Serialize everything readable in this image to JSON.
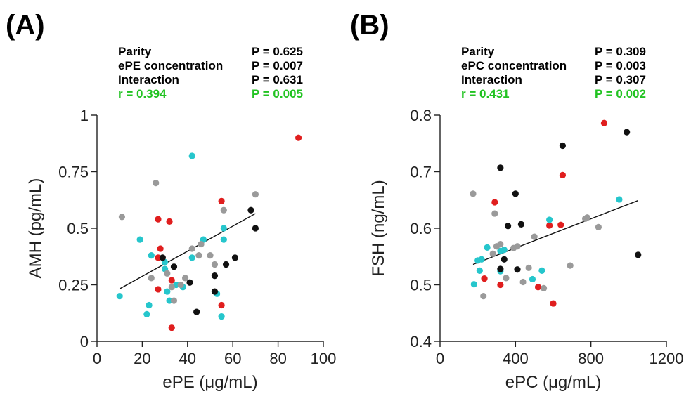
{
  "colors": {
    "red": "#e01e1e",
    "cyan": "#26c6cc",
    "gray": "#9a9a9a",
    "black": "#111111",
    "green": "#22c322"
  },
  "chart_data": [
    {
      "type": "scatter",
      "panel_label": "(A)",
      "xlabel": "ePE (μg/mL)",
      "ylabel": "AMH (pg/mL)",
      "xlim": [
        0,
        100
      ],
      "ylim": [
        0,
        1
      ],
      "xticks": [
        0,
        20,
        40,
        60,
        80,
        100
      ],
      "xtick_labels": [
        "0",
        "20",
        "40",
        "60",
        "80",
        "100"
      ],
      "yticks": [
        0,
        0.25,
        0.5,
        0.75,
        1
      ],
      "ytick_labels": [
        "0",
        "0.25",
        "0.5",
        "0.75",
        "1"
      ],
      "stats": [
        {
          "label": "Parity",
          "p": "P = 0.625",
          "color": "black"
        },
        {
          "label": "ePE concentration",
          "p": "P = 0.007",
          "color": "black"
        },
        {
          "label": "Interaction",
          "p": "P = 0.631",
          "color": "black"
        },
        {
          "label": "r = 0.394",
          "p": "P = 0.005",
          "color": "green"
        }
      ],
      "fit_line": {
        "x": [
          10,
          70
        ],
        "y": [
          0.232,
          0.565
        ]
      },
      "series": [
        {
          "color": "red",
          "points": [
            [
              89,
              0.9
            ],
            [
              55,
              0.62
            ],
            [
              27,
              0.54
            ],
            [
              32,
              0.53
            ],
            [
              28,
              0.41
            ],
            [
              27,
              0.37
            ],
            [
              33,
              0.27
            ],
            [
              27,
              0.23
            ],
            [
              55,
              0.16
            ],
            [
              33,
              0.06
            ]
          ]
        },
        {
          "color": "cyan",
          "points": [
            [
              42,
              0.82
            ],
            [
              19,
              0.45
            ],
            [
              47,
              0.45
            ],
            [
              56,
              0.5
            ],
            [
              56,
              0.45
            ],
            [
              24,
              0.38
            ],
            [
              30,
              0.35
            ],
            [
              30,
              0.32
            ],
            [
              35,
              0.25
            ],
            [
              31,
              0.22
            ],
            [
              32,
              0.18
            ],
            [
              23,
              0.16
            ],
            [
              22,
              0.12
            ],
            [
              10,
              0.2
            ],
            [
              38,
              0.24
            ],
            [
              53,
              0.21
            ],
            [
              55,
              0.11
            ],
            [
              42,
              0.37
            ]
          ]
        },
        {
          "color": "gray",
          "points": [
            [
              11,
              0.55
            ],
            [
              26,
              0.7
            ],
            [
              70,
              0.65
            ],
            [
              56,
              0.58
            ],
            [
              42,
              0.41
            ],
            [
              46,
              0.43
            ],
            [
              50,
              0.38
            ],
            [
              45,
              0.38
            ],
            [
              52,
              0.34
            ],
            [
              57,
              0.34
            ],
            [
              39,
              0.28
            ],
            [
              37,
              0.25
            ],
            [
              24,
              0.28
            ],
            [
              33,
              0.24
            ],
            [
              34,
              0.18
            ],
            [
              31,
              0.3
            ]
          ]
        },
        {
          "color": "black",
          "points": [
            [
              68,
              0.58
            ],
            [
              70,
              0.5
            ],
            [
              61,
              0.37
            ],
            [
              57,
              0.34
            ],
            [
              34,
              0.33
            ],
            [
              29,
              0.37
            ],
            [
              52,
              0.29
            ],
            [
              41,
              0.26
            ],
            [
              52,
              0.22
            ],
            [
              44,
              0.13
            ]
          ]
        }
      ]
    },
    {
      "type": "scatter",
      "panel_label": "(B)",
      "xlabel": "ePC (μg/mL)",
      "ylabel": "FSH (ng/mL)",
      "xlim": [
        0,
        1200
      ],
      "ylim": [
        0.4,
        0.8
      ],
      "xticks": [
        0,
        400,
        800,
        1200
      ],
      "xtick_labels": [
        "0",
        "400",
        "800",
        "1200"
      ],
      "yticks": [
        0.4,
        0.5,
        0.6,
        0.7,
        0.8
      ],
      "ytick_labels": [
        "0.4",
        "0.5",
        "0.6",
        "0.7",
        "0.8"
      ],
      "stats": [
        {
          "label": "Parity",
          "p": "P = 0.309",
          "color": "black"
        },
        {
          "label": "ePC concentration",
          "p": "P = 0.003",
          "color": "black"
        },
        {
          "label": "Interaction",
          "p": "P = 0.307",
          "color": "black"
        },
        {
          "label": "r = 0.431",
          "p": "P = 0.002",
          "color": "green"
        }
      ],
      "fit_line": {
        "x": [
          175,
          1050
        ],
        "y": [
          0.536,
          0.649
        ]
      },
      "series": [
        {
          "color": "red",
          "points": [
            [
              870,
              0.786
            ],
            [
              650,
              0.694
            ],
            [
              290,
              0.646
            ],
            [
              580,
              0.605
            ],
            [
              640,
              0.606
            ],
            [
              235,
              0.511
            ],
            [
              320,
              0.5
            ],
            [
              520,
              0.496
            ],
            [
              600,
              0.467
            ]
          ]
        },
        {
          "color": "cyan",
          "points": [
            [
              950,
              0.651
            ],
            [
              580,
              0.615
            ],
            [
              250,
              0.566
            ],
            [
              340,
              0.562
            ],
            [
              320,
              0.56
            ],
            [
              220,
              0.545
            ],
            [
              200,
              0.543
            ],
            [
              210,
              0.525
            ],
            [
              180,
              0.501
            ],
            [
              320,
              0.524
            ],
            [
              540,
              0.525
            ],
            [
              490,
              0.51
            ]
          ]
        },
        {
          "color": "gray",
          "points": [
            [
              175,
              0.661
            ],
            [
              290,
              0.626
            ],
            [
              780,
              0.619
            ],
            [
              770,
              0.617
            ],
            [
              840,
              0.602
            ],
            [
              500,
              0.585
            ],
            [
              300,
              0.568
            ],
            [
              320,
              0.572
            ],
            [
              390,
              0.565
            ],
            [
              410,
              0.568
            ],
            [
              280,
              0.555
            ],
            [
              470,
              0.53
            ],
            [
              690,
              0.534
            ],
            [
              230,
              0.48
            ],
            [
              440,
              0.505
            ],
            [
              550,
              0.494
            ],
            [
              350,
              0.512
            ]
          ]
        },
        {
          "color": "black",
          "points": [
            [
              990,
              0.77
            ],
            [
              650,
              0.746
            ],
            [
              320,
              0.707
            ],
            [
              400,
              0.661
            ],
            [
              430,
              0.607
            ],
            [
              360,
              0.604
            ],
            [
              340,
              0.545
            ],
            [
              320,
              0.528
            ],
            [
              410,
              0.527
            ],
            [
              1050,
              0.553
            ]
          ]
        }
      ]
    }
  ]
}
